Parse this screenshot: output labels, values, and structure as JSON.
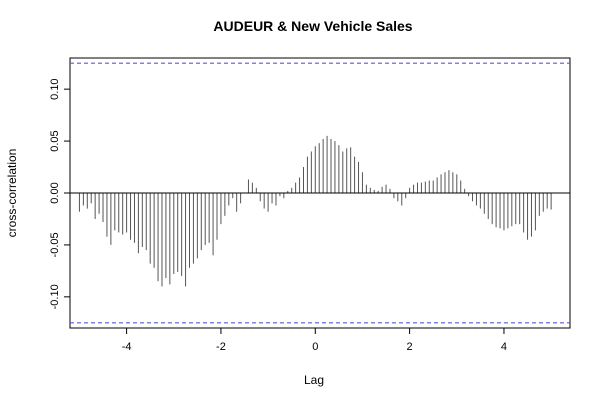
{
  "chart_data": {
    "type": "bar",
    "title": "AUDEUR & New Vehicle Sales",
    "xlabel": "Lag",
    "ylabel": "cross-correlation",
    "xlim": [
      -5.2,
      5.4
    ],
    "ylim": [
      -0.13,
      0.13
    ],
    "xticks": [
      -4,
      -2,
      0,
      2,
      4
    ],
    "xtick_labels": [
      "-4",
      "-2",
      "0",
      "2",
      "4"
    ],
    "yticks": [
      -0.1,
      -0.05,
      0.0,
      0.05,
      0.1
    ],
    "ytick_labels": [
      "-0.10",
      "-0.05",
      "0.00",
      "0.05",
      "0.10"
    ],
    "confidence_limit": 0.125,
    "colors": {
      "bars": "#555555",
      "ci": "#5b5bd6",
      "zero": "#000000",
      "axes": "#000000"
    },
    "lag": [
      -5.0,
      -4.9167,
      -4.8333,
      -4.75,
      -4.6667,
      -4.5833,
      -4.5,
      -4.4167,
      -4.3333,
      -4.25,
      -4.1667,
      -4.0833,
      -4.0,
      -3.9167,
      -3.8333,
      -3.75,
      -3.6667,
      -3.5833,
      -3.5,
      -3.4167,
      -3.3333,
      -3.25,
      -3.1667,
      -3.0833,
      -3.0,
      -2.9167,
      -2.8333,
      -2.75,
      -2.6667,
      -2.5833,
      -2.5,
      -2.4167,
      -2.3333,
      -2.25,
      -2.1667,
      -2.0833,
      -2.0,
      -1.9167,
      -1.8333,
      -1.75,
      -1.6667,
      -1.5833,
      -1.5,
      -1.4167,
      -1.3333,
      -1.25,
      -1.1667,
      -1.0833,
      -1.0,
      -0.9167,
      -0.8333,
      -0.75,
      -0.6667,
      -0.5833,
      -0.5,
      -0.4167,
      -0.3333,
      -0.25,
      -0.1667,
      -0.0833,
      0.0,
      0.0833,
      0.1667,
      0.25,
      0.3333,
      0.4167,
      0.5,
      0.5833,
      0.6667,
      0.75,
      0.8333,
      0.9167,
      1.0,
      1.0833,
      1.1667,
      1.25,
      1.3333,
      1.4167,
      1.5,
      1.5833,
      1.6667,
      1.75,
      1.8333,
      1.9167,
      2.0,
      2.0833,
      2.1667,
      2.25,
      2.3333,
      2.4167,
      2.5,
      2.5833,
      2.6667,
      2.75,
      2.8333,
      2.9167,
      3.0,
      3.0833,
      3.1667,
      3.25,
      3.3333,
      3.4167,
      3.5,
      3.5833,
      3.6667,
      3.75,
      3.8333,
      3.9167,
      4.0,
      4.0833,
      4.1667,
      4.25,
      4.3333,
      4.4167,
      4.5,
      4.5833,
      4.6667,
      4.75,
      4.8333,
      4.9167,
      5.0
    ],
    "values": [
      -0.018,
      -0.012,
      -0.015,
      -0.01,
      -0.025,
      -0.02,
      -0.028,
      -0.042,
      -0.05,
      -0.036,
      -0.038,
      -0.04,
      -0.038,
      -0.045,
      -0.048,
      -0.058,
      -0.052,
      -0.055,
      -0.068,
      -0.072,
      -0.085,
      -0.09,
      -0.082,
      -0.088,
      -0.078,
      -0.076,
      -0.08,
      -0.09,
      -0.072,
      -0.068,
      -0.063,
      -0.055,
      -0.05,
      -0.048,
      -0.06,
      -0.045,
      -0.03,
      -0.022,
      -0.012,
      -0.005,
      -0.018,
      -0.01,
      0.0,
      0.013,
      0.01,
      0.005,
      -0.008,
      -0.015,
      -0.018,
      -0.01,
      -0.012,
      -0.003,
      -0.005,
      0.002,
      0.005,
      0.01,
      0.015,
      0.025,
      0.035,
      0.04,
      0.045,
      0.048,
      0.052,
      0.055,
      0.052,
      0.05,
      0.046,
      0.04,
      0.043,
      0.044,
      0.035,
      0.03,
      0.02,
      0.008,
      0.005,
      0.003,
      0.002,
      0.006,
      0.008,
      0.004,
      -0.005,
      -0.008,
      -0.012,
      -0.005,
      0.005,
      0.008,
      0.01,
      0.01,
      0.011,
      0.012,
      0.012,
      0.015,
      0.018,
      0.02,
      0.022,
      0.02,
      0.018,
      0.012,
      0.004,
      -0.003,
      -0.008,
      -0.012,
      -0.015,
      -0.02,
      -0.025,
      -0.03,
      -0.033,
      -0.034,
      -0.036,
      -0.034,
      -0.032,
      -0.03,
      -0.03,
      -0.038,
      -0.045,
      -0.042,
      -0.036,
      -0.022,
      -0.018,
      -0.015,
      -0.016
    ]
  }
}
